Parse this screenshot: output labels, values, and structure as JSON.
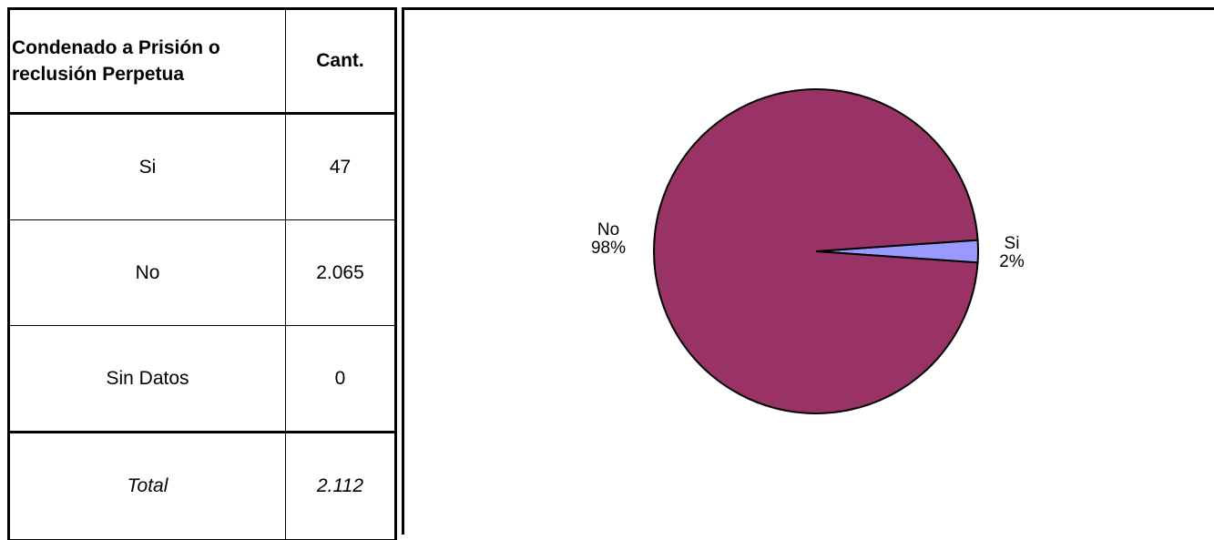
{
  "table": {
    "header": {
      "col1": "Condenado a Prisión o reclusión Perpetua",
      "col2": "Cant."
    },
    "rows": [
      {
        "label": "Si",
        "value": "47"
      },
      {
        "label": "No",
        "value": "2.065"
      },
      {
        "label": "Sin Datos",
        "value": "0"
      }
    ],
    "total": {
      "label": "Total",
      "value": "2.112"
    }
  },
  "chart_data": {
    "type": "pie",
    "categories": [
      "Si",
      "No"
    ],
    "values": [
      47,
      2065
    ],
    "labels": [
      {
        "name": "Si",
        "percent": "2%"
      },
      {
        "name": "No",
        "percent": "98%"
      }
    ],
    "colors": {
      "Si": "#9999ff",
      "No": "#993366"
    }
  }
}
